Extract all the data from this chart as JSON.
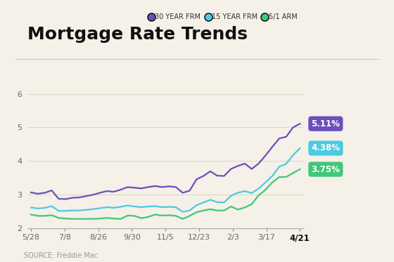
{
  "title": "Mortgage Rate Trends",
  "source": "SOURCE: Freddie Mac",
  "background_color": "#f5f0e8",
  "plot_background": "#f5f0e8",
  "x_labels": [
    "5/28",
    "7/8",
    "8/26",
    "9/30",
    "11/5",
    "12/23",
    "2/3",
    "3/17",
    "4/21"
  ],
  "ylim": [
    2,
    6.3
  ],
  "yticks": [
    2,
    3,
    4,
    5,
    6
  ],
  "series": {
    "30yr": {
      "color": "#6b4fbb",
      "label": "30 YEAR FRM",
      "end_value": "5.11%",
      "values": [
        3.06,
        3.02,
        3.05,
        3.12,
        2.87,
        2.86,
        2.9,
        2.91,
        2.95,
        2.99,
        3.05,
        3.1,
        3.08,
        3.14,
        3.22,
        3.2,
        3.18,
        3.22,
        3.25,
        3.22,
        3.24,
        3.22,
        3.05,
        3.11,
        3.45,
        3.55,
        3.69,
        3.56,
        3.55,
        3.76,
        3.85,
        3.92,
        3.76,
        3.92,
        4.16,
        4.42,
        4.67,
        4.72,
        5.0,
        5.11
      ]
    },
    "15yr": {
      "color": "#4dc9e0",
      "label": "15 YEAR FRM",
      "end_value": "4.38%",
      "values": [
        2.61,
        2.58,
        2.6,
        2.65,
        2.51,
        2.51,
        2.52,
        2.52,
        2.54,
        2.56,
        2.59,
        2.62,
        2.6,
        2.63,
        2.67,
        2.64,
        2.62,
        2.64,
        2.65,
        2.62,
        2.63,
        2.62,
        2.48,
        2.52,
        2.68,
        2.76,
        2.84,
        2.77,
        2.76,
        2.96,
        3.05,
        3.1,
        3.04,
        3.17,
        3.36,
        3.55,
        3.83,
        3.91,
        4.17,
        4.38
      ]
    },
    "arm": {
      "color": "#3fc878",
      "label": "5/1 ARM",
      "end_value": "3.75%",
      "values": [
        2.4,
        2.36,
        2.36,
        2.38,
        2.3,
        2.28,
        2.27,
        2.27,
        2.27,
        2.27,
        2.28,
        2.3,
        2.28,
        2.27,
        2.37,
        2.36,
        2.29,
        2.33,
        2.4,
        2.37,
        2.38,
        2.36,
        2.27,
        2.36,
        2.47,
        2.52,
        2.56,
        2.52,
        2.52,
        2.64,
        2.55,
        2.61,
        2.71,
        2.97,
        3.14,
        3.36,
        3.52,
        3.52,
        3.64,
        3.75
      ]
    }
  },
  "legend": {
    "colors": [
      "#6b4fbb",
      "#4dc9e0",
      "#3fc878"
    ],
    "labels": [
      "30 YEAR FRM",
      "15 YEAR FRM",
      "5/1 ARM"
    ]
  },
  "title_fontsize": 18,
  "axis_label_fontsize": 8,
  "source_fontsize": 7,
  "line_width": 1.6
}
